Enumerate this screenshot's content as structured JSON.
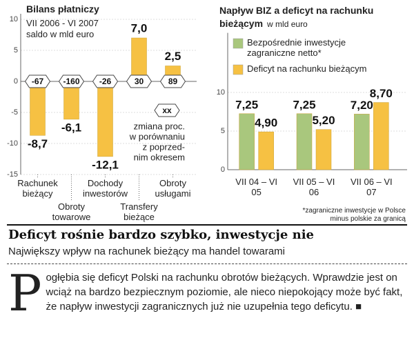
{
  "chart_data": [
    {
      "type": "bar",
      "title": "Bilans płatniczy",
      "subtitle": [
        "VII 2006 - VI 2007",
        "saldo w mld euro"
      ],
      "categories": [
        "Rachunek bieżący",
        "Obroty towarowe",
        "Dochody inwestorów",
        "Transfery bieżące",
        "Obroty usługami"
      ],
      "values": [
        -8.7,
        -6.1,
        -12.1,
        7.0,
        2.5
      ],
      "value_labels": [
        "-8,7",
        "-6,1",
        "-12,1",
        "7,0",
        "2,5"
      ],
      "changes": [
        -67,
        -160,
        -26,
        30,
        89
      ],
      "change_legend": {
        "symbol": "xx",
        "text": [
          "zmiana proc.",
          "w porównaniu",
          "z poprzed-",
          "nim okresem"
        ]
      },
      "color": "#f6c143",
      "ylim": [
        -15,
        10
      ],
      "yticks": [
        -15,
        -10,
        -5,
        0,
        5,
        10
      ],
      "grid": true
    },
    {
      "type": "bar",
      "title": "Napływ BIZ a deficyt na rachunku bieżącym",
      "unit": "w mld euro",
      "categories": [
        "VII 04 – VI 05",
        "VII 05 – VI 06",
        "VII 06 – VI 07"
      ],
      "series": [
        {
          "name": "Bezpośrednie inwestycje zagraniczne netto*",
          "color": "#a9c77d",
          "values": [
            7.25,
            7.25,
            7.2
          ],
          "value_labels": [
            "7,25",
            "7,25",
            "7,20"
          ]
        },
        {
          "name": "Deficyt na rachunku bieżącym",
          "color": "#f6c143",
          "values": [
            4.9,
            5.2,
            8.7
          ],
          "value_labels": [
            "4,90",
            "5,20",
            "8,70"
          ]
        }
      ],
      "footnote": [
        "*zagraniczne inwestycje w Polsce",
        "minus polskie za granicą"
      ],
      "ylim": [
        0,
        17
      ],
      "yticks": [
        0,
        5,
        10
      ],
      "grid": true
    }
  ],
  "article": {
    "headline": "Deficyt rośnie bardzo szybko, inwestycje nie",
    "subheadline": "Największy wpływ na rachunek bieżący ma handel towarami",
    "drop_cap": "P",
    "body": "ogłębia się deficyt Polski na rachunku obrotów bieżących. Wprawdzie jest on wciąż na bardzo bezpiecznym poziomie, ale nieco niepokojący może być fakt, że napływ inwestycji zagranicznych już nie uzupełnia tego deficytu. ■"
  }
}
